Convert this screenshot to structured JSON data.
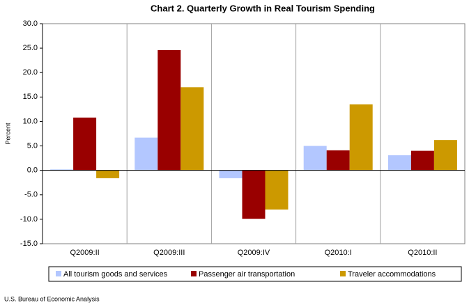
{
  "chart_data": {
    "type": "bar",
    "title": "Chart 2. Quarterly Growth in Real Tourism Spending",
    "y_label": "Percent",
    "source": "U.S. Bureau of Economic Analysis",
    "categories": [
      "Q2009:II",
      "Q2009:III",
      "Q2009:IV",
      "Q2010:I",
      "Q2010:II"
    ],
    "series": [
      {
        "name": "All tourism goods and services",
        "color": "#b3c7ff",
        "values": [
          0.2,
          6.7,
          -1.6,
          5.0,
          3.1
        ]
      },
      {
        "name": "Passenger air transportation",
        "color": "#990000",
        "values": [
          10.8,
          24.6,
          -9.9,
          4.1,
          4.0
        ]
      },
      {
        "name": "Traveler accommodations",
        "color": "#cc9900",
        "values": [
          -1.6,
          17.0,
          -8.0,
          13.5,
          6.2
        ]
      }
    ],
    "ylim": [
      -15,
      30
    ],
    "yticks": [
      {
        "value": -15,
        "label": "-15.0"
      },
      {
        "value": -10,
        "label": "-10.0"
      },
      {
        "value": -5,
        "label": "-5.0"
      },
      {
        "value": 0,
        "label": "0.0"
      },
      {
        "value": 5,
        "label": "5.0"
      },
      {
        "value": 10,
        "label": "10.0"
      },
      {
        "value": 15,
        "label": "15.0"
      },
      {
        "value": 20,
        "label": "20.0"
      },
      {
        "value": 25,
        "label": "25.0"
      },
      {
        "value": 30,
        "label": "30.0"
      }
    ],
    "vertical_grid": true,
    "legend": "bottom"
  }
}
